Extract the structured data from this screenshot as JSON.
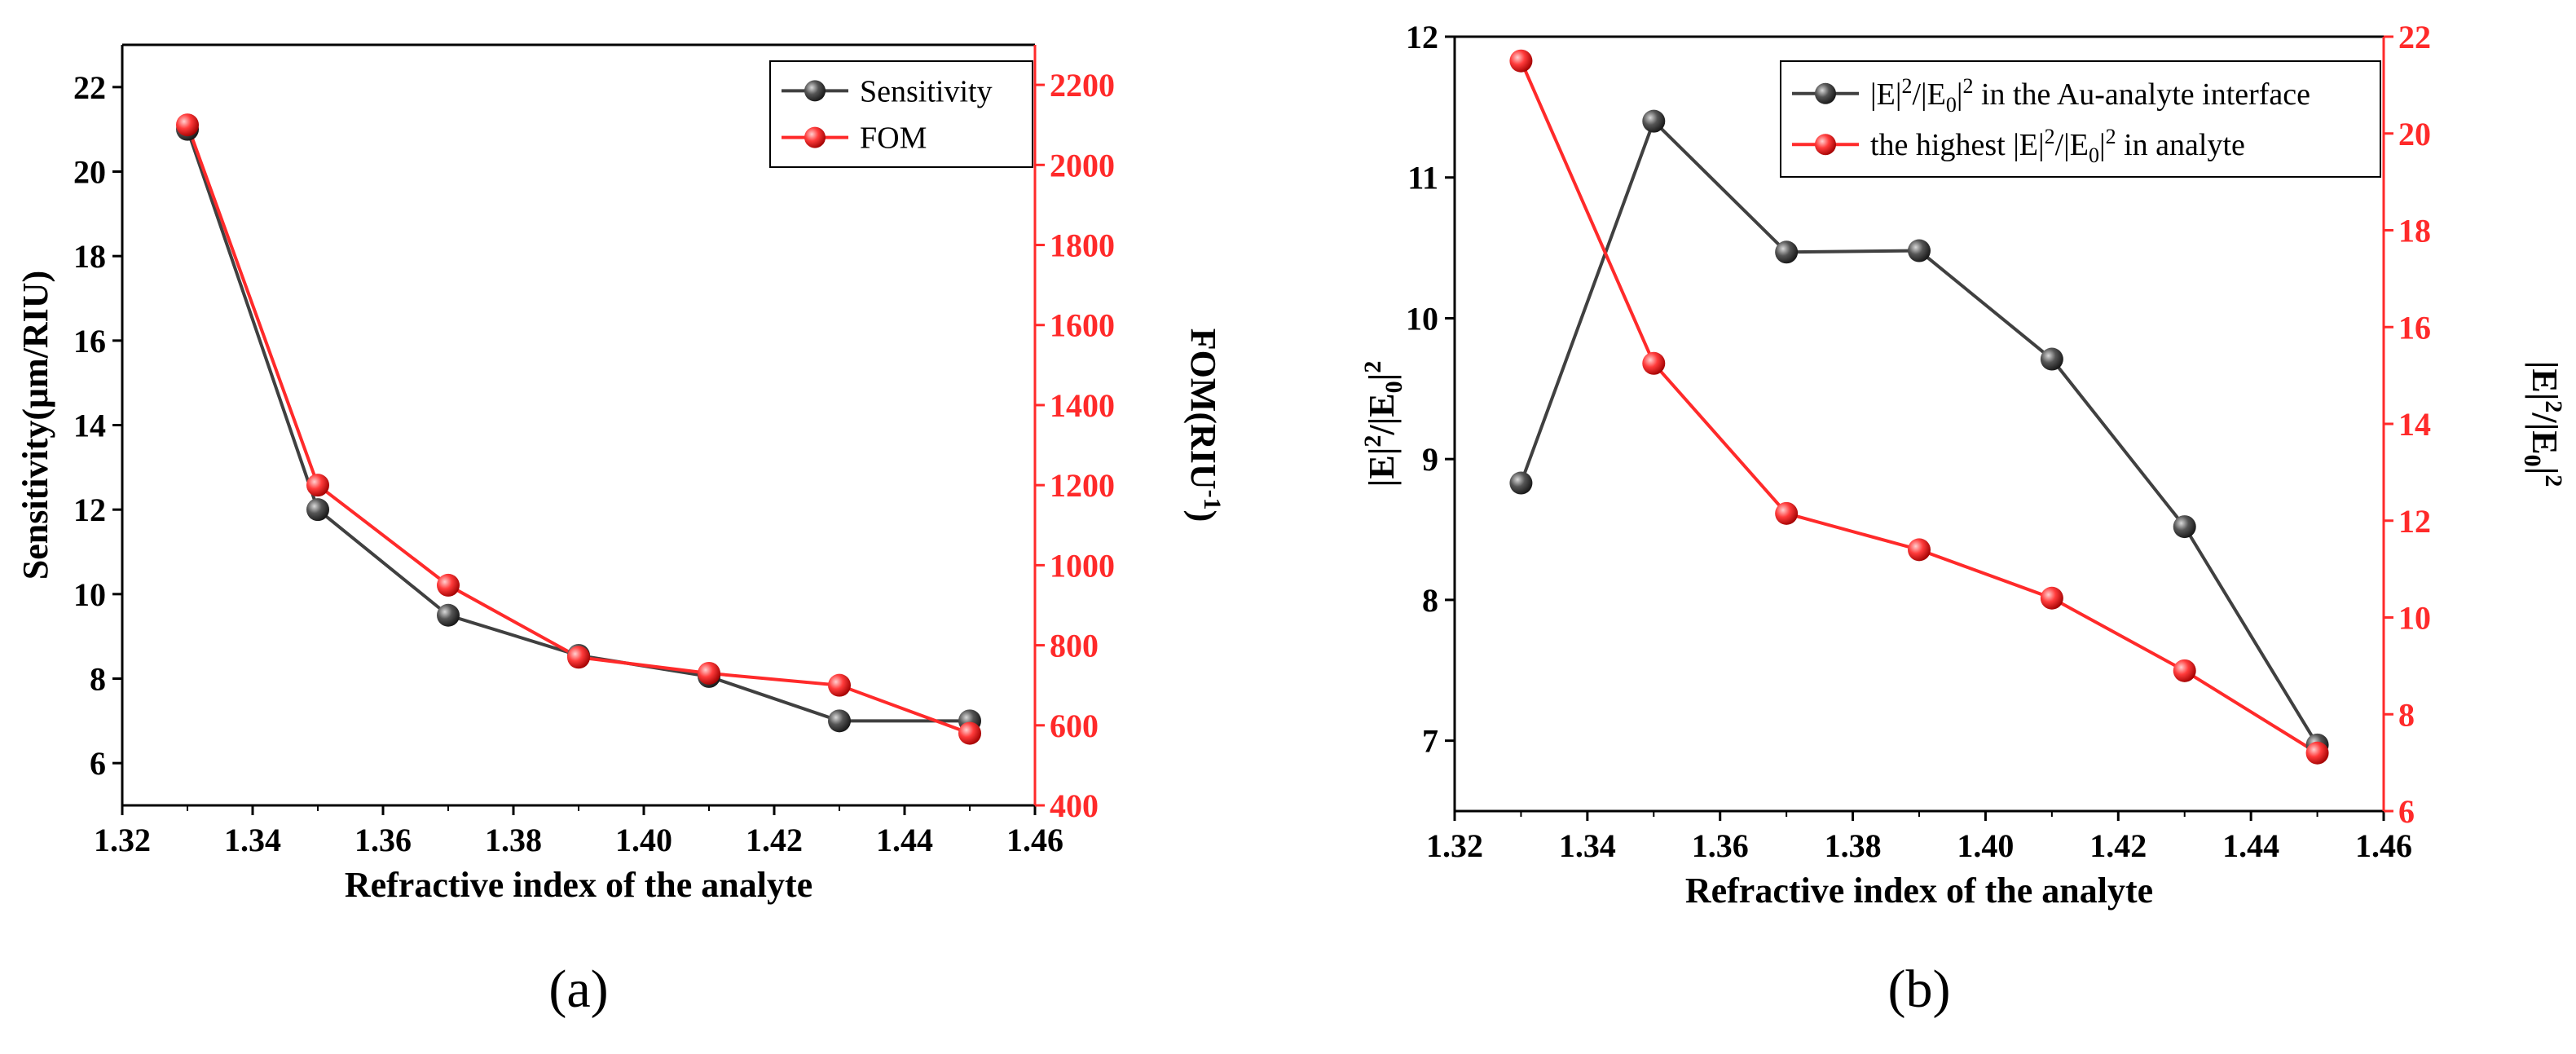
{
  "colors": {
    "black_series": "#404040",
    "red_series": "#ff2a2a",
    "axis_black": "#000000",
    "axis_red": "#ff2a2a"
  },
  "chart_data": [
    {
      "type": "line",
      "panel_label": "(a)",
      "xlabel": "Refractive index of the analyte",
      "ylabel_left": "Sensitivity(μm/RIU)",
      "ylabel_right": "FOM(RIU",
      "ylabel_right_sup": "-1",
      "ylabel_right_tail": ")",
      "xlim": [
        1.32,
        1.46
      ],
      "ylim_left": [
        5,
        23
      ],
      "ylim_right": [
        400,
        2300
      ],
      "x_ticks": [
        "1.32",
        "1.34",
        "1.36",
        "1.38",
        "1.40",
        "1.42",
        "1.44",
        "1.46"
      ],
      "y_left_ticks": [
        "6",
        "8",
        "10",
        "12",
        "14",
        "16",
        "18",
        "20",
        "22"
      ],
      "y_right_ticks": [
        "400",
        "600",
        "800",
        "1000",
        "1200",
        "1400",
        "1600",
        "1800",
        "2000",
        "2200"
      ],
      "legend": [
        "Sensitivity",
        "FOM"
      ],
      "x": [
        1.33,
        1.35,
        1.37,
        1.39,
        1.41,
        1.43,
        1.45
      ],
      "series": [
        {
          "name": "Sensitivity",
          "axis": "left",
          "color": "#404040",
          "values": [
            21,
            12,
            9.5,
            8.55,
            8.05,
            7,
            7
          ]
        },
        {
          "name": "FOM",
          "axis": "right",
          "color": "#ff2a2a",
          "values": [
            2100,
            1200,
            950,
            770,
            730,
            700,
            580
          ]
        }
      ]
    },
    {
      "type": "line",
      "panel_label": "(b)",
      "xlabel": "Refractive index of the analyte",
      "xlim": [
        1.32,
        1.46
      ],
      "ylim_left": [
        6.5,
        12
      ],
      "ylim_right": [
        6,
        22
      ],
      "x_ticks": [
        "1.32",
        "1.34",
        "1.36",
        "1.38",
        "1.40",
        "1.42",
        "1.44",
        "1.46"
      ],
      "y_left_ticks": [
        "7",
        "8",
        "9",
        "10",
        "11",
        "12"
      ],
      "y_right_ticks": [
        "6",
        "8",
        "10",
        "12",
        "14",
        "16",
        "18",
        "20",
        "22"
      ],
      "legend_a_prefix": "|E|",
      "legend_a_suffix": " in the Au-analyte interface",
      "legend_b_prefix": "the highest |E|",
      "legend_b_suffix": " in analyte",
      "x": [
        1.33,
        1.35,
        1.37,
        1.39,
        1.41,
        1.43,
        1.45
      ],
      "series": [
        {
          "name": "|E|2/|E0|2 in the Au-analyte interface",
          "axis": "left",
          "color": "#404040",
          "values": [
            8.83,
            11.4,
            10.47,
            10.48,
            9.71,
            8.52,
            6.97
          ]
        },
        {
          "name": "the highest |E|2/|E0|2 in analyte",
          "axis": "right",
          "color": "#ff2a2a",
          "values": [
            21.5,
            15.25,
            12.15,
            11.4,
            10.4,
            8.9,
            7.2
          ]
        }
      ]
    }
  ]
}
